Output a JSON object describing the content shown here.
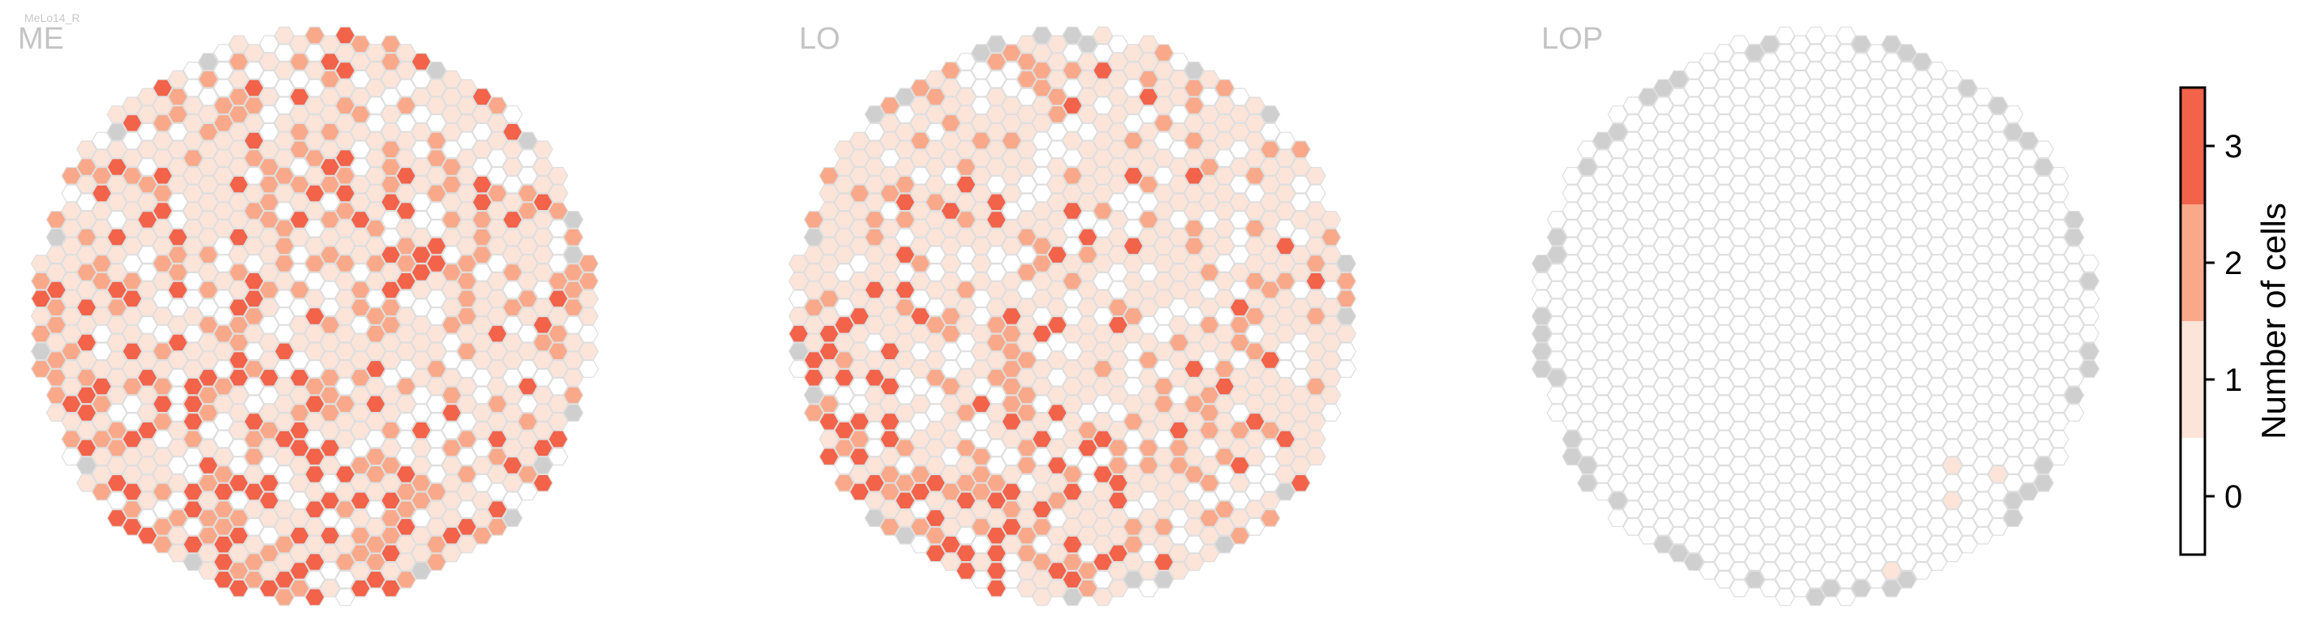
{
  "cell_type": "MeLo14_R",
  "colors": {
    "level_0": "#ffffff",
    "level_1": "#fde4d9",
    "level_2": "#f9a98a",
    "level_3": "#f2634a",
    "no_data": "#cfcfcf",
    "hex_stroke": "#dedede",
    "panel_title": "#c4c4c4",
    "small_label": "#c8c8c8"
  },
  "colorbar": {
    "label": "Number of cells",
    "ticks": [
      "0",
      "1",
      "2",
      "3"
    ]
  },
  "chart_data": [
    {
      "type": "heatmap",
      "title": "ME",
      "hex_radius": 12.5,
      "seed": 14,
      "density": "high",
      "value_scale": [
        0,
        3
      ],
      "levels": [
        0,
        1,
        2,
        3
      ]
    },
    {
      "type": "heatmap",
      "title": "LO",
      "hex_radius": 12.5,
      "seed": 27,
      "density": "medium",
      "value_scale": [
        0,
        3
      ],
      "levels": [
        0,
        1,
        2,
        3
      ]
    },
    {
      "type": "heatmap",
      "title": "LOP",
      "hex_radius": 12.5,
      "seed": 5,
      "density": "sparse",
      "value_scale": [
        0,
        3
      ],
      "levels": [
        0,
        1,
        2,
        3
      ]
    }
  ]
}
